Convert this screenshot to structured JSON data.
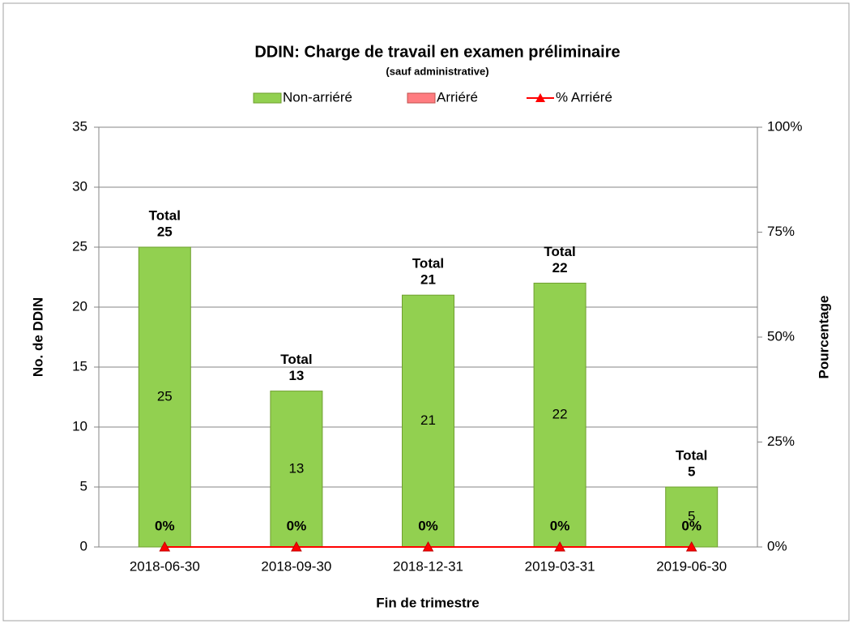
{
  "chart_data": {
    "type": "stacked_bar_line",
    "title": "DDIN:  Charge de travail en examen préliminaire",
    "subtitle": "(sauf administrative)",
    "x_label": "Fin de trimestre",
    "y_label": "No. de DDIN",
    "y2_label": "Pourcentage",
    "categories": [
      "2018-06-30",
      "2018-09-30",
      "2018-12-31",
      "2019-03-31",
      "2019-06-30"
    ],
    "series": [
      {
        "name": "Non-arriéré",
        "color": "#92d050",
        "values": [
          25,
          13,
          21,
          22,
          5
        ]
      },
      {
        "name": "Arriéré",
        "color": "#ff7c80",
        "values": [
          0,
          0,
          0,
          0,
          0
        ]
      },
      {
        "name": "% Arriéré",
        "color": "#ff0000",
        "axis": "y2",
        "type": "line",
        "values": [
          0,
          0,
          0,
          0,
          0
        ],
        "value_labels": [
          "0%",
          "0%",
          "0%",
          "0%",
          "0%"
        ]
      }
    ],
    "total_label": "Total",
    "totals": [
      25,
      13,
      21,
      22,
      5
    ],
    "ylim": [
      0,
      35
    ],
    "yticks": [
      0,
      5,
      10,
      15,
      20,
      25,
      30,
      35
    ],
    "y2lim": [
      0,
      100
    ],
    "y2ticks": [
      {
        "value": 0,
        "label": "0%"
      },
      {
        "value": 25,
        "label": "25%"
      },
      {
        "value": 50,
        "label": "50%"
      },
      {
        "value": 75,
        "label": "75%"
      },
      {
        "value": 100,
        "label": "100%"
      }
    ],
    "grid": true,
    "legend": "top"
  }
}
